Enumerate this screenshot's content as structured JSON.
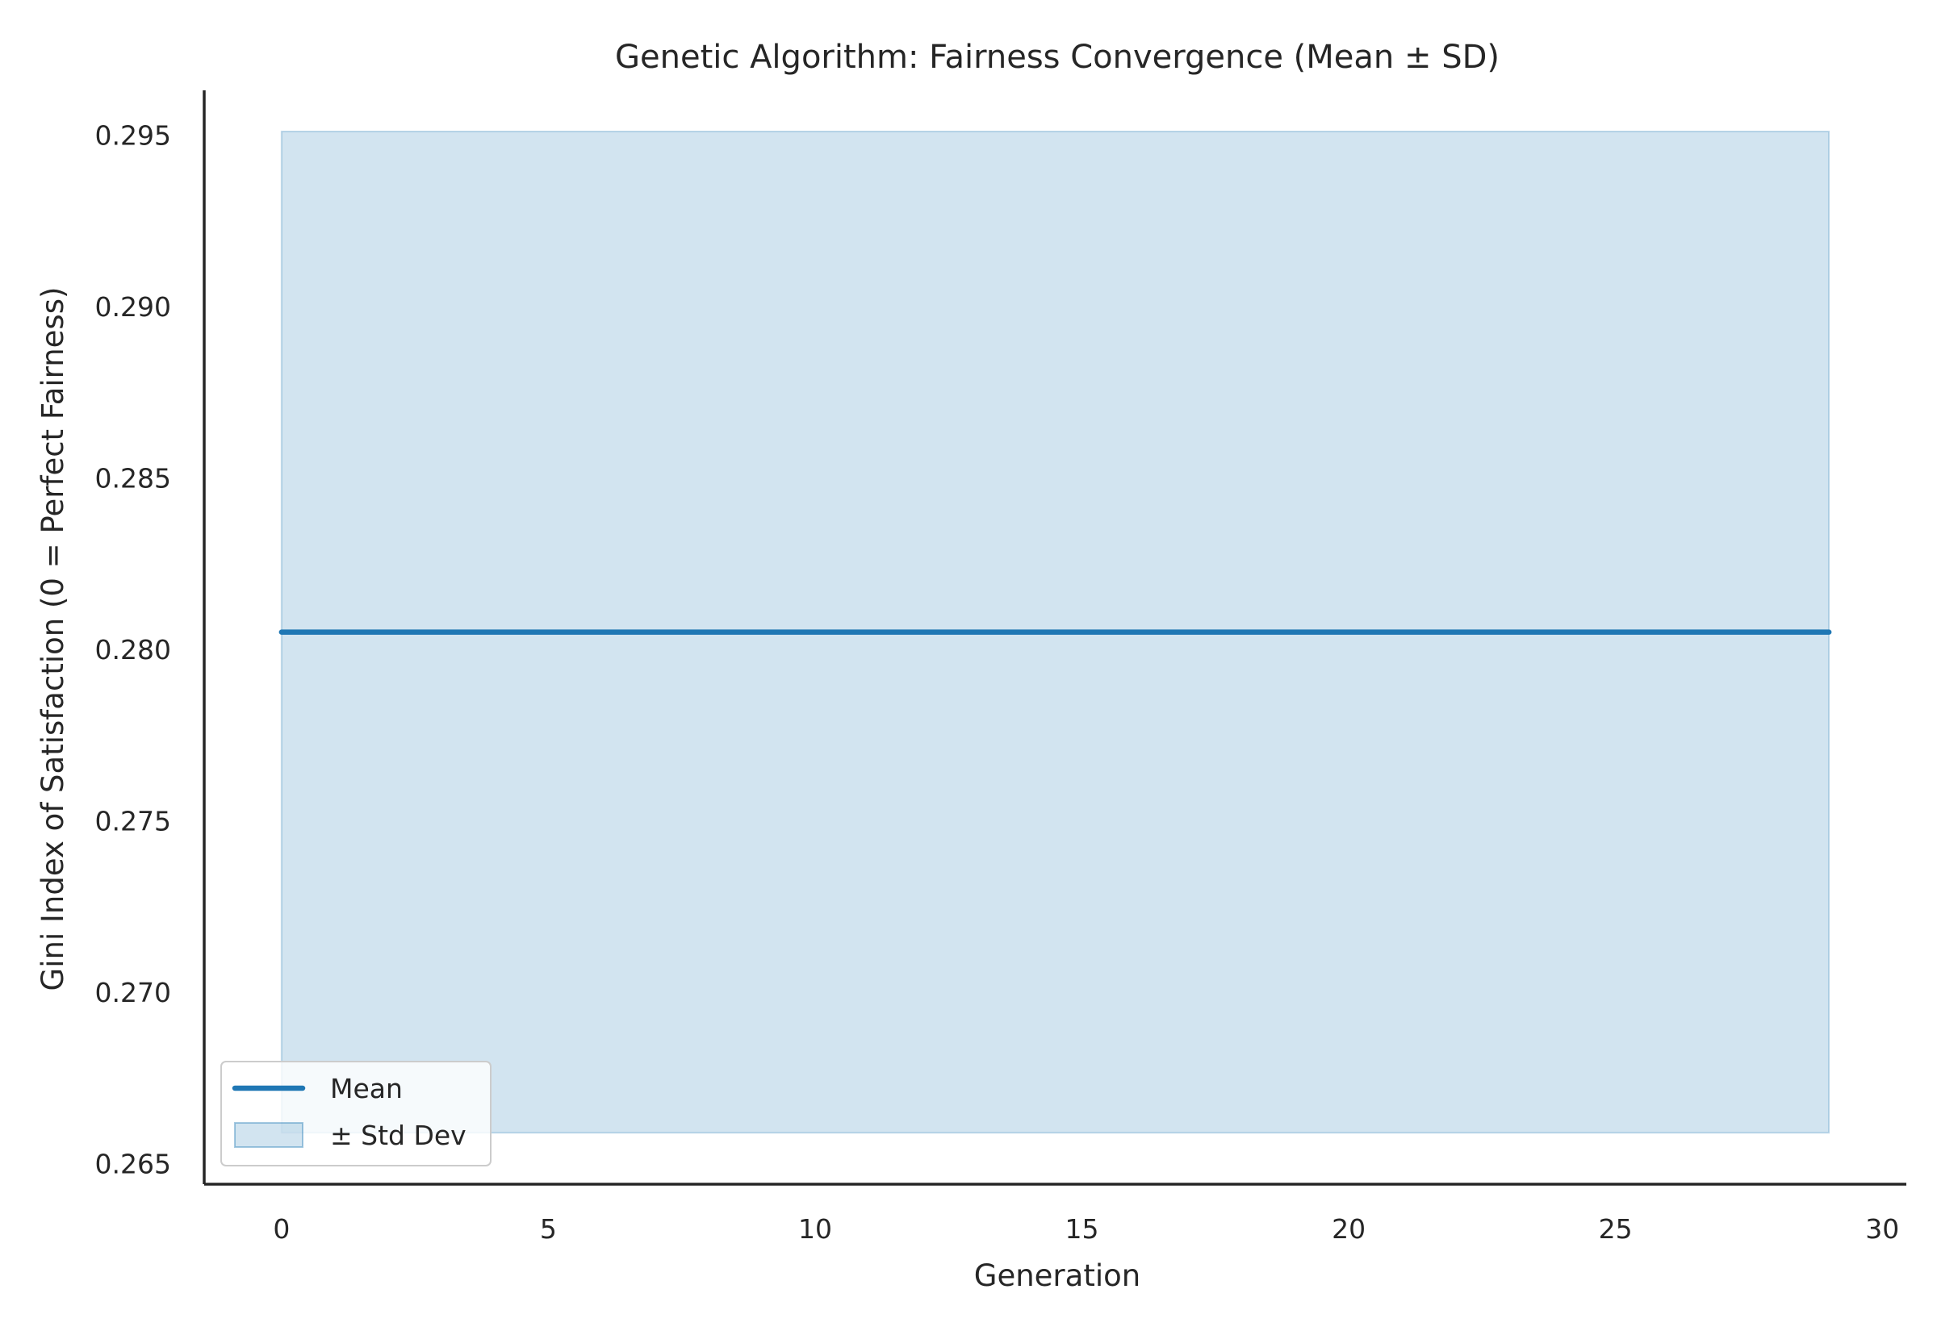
{
  "chart_data": {
    "type": "line",
    "title": "Genetic Algorithm: Fairness Convergence (Mean ± SD)",
    "xlabel": "Generation",
    "ylabel": "Gini Index of Satisfaction (0 = Perfect Fairness)",
    "xlim": [
      -1.45,
      30.45
    ],
    "ylim": [
      0.2644,
      0.2963
    ],
    "xticks": [
      0,
      5,
      10,
      15,
      20,
      25,
      30
    ],
    "xtick_labels": [
      "0",
      "5",
      "10",
      "15",
      "20",
      "25",
      "30"
    ],
    "yticks": [
      0.265,
      0.27,
      0.275,
      0.28,
      0.285,
      0.29,
      0.295
    ],
    "ytick_labels": [
      "0.265",
      "0.270",
      "0.275",
      "0.280",
      "0.285",
      "0.290",
      "0.295"
    ],
    "grid": false,
    "legend_position": "lower-left",
    "x": [
      0,
      29
    ],
    "series": [
      {
        "name": "Mean",
        "kind": "line",
        "color": "#1f77b4",
        "values": [
          0.2805,
          0.2805
        ]
      },
      {
        "name": "± Std Dev",
        "kind": "band",
        "color": "#1f77b4",
        "lower": [
          0.2659,
          0.2659
        ],
        "upper": [
          0.2951,
          0.2951
        ]
      }
    ]
  }
}
